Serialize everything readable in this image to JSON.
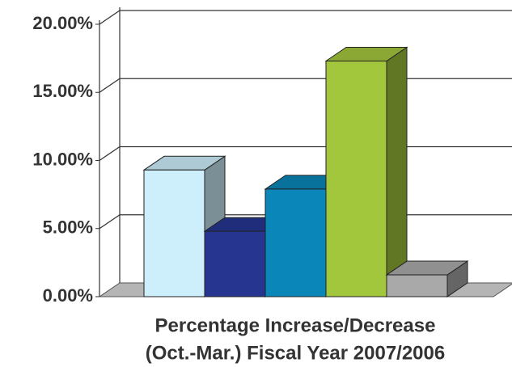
{
  "chart_data": {
    "type": "bar3d",
    "xlabel": [
      "Percentage Increase/Decrease",
      "(Oct.-Mar.) Fiscal Year 2007/2006"
    ],
    "categories": [
      null,
      null,
      null,
      null,
      null
    ],
    "values": [
      9.3,
      4.8,
      7.9,
      17.3,
      1.6
    ],
    "colors": [
      "#cdeefb",
      "#26358f",
      "#0b86b8",
      "#a2c63c",
      "#a9a9a9"
    ],
    "ylim": [
      0,
      20
    ],
    "yticks": [
      {
        "value": 0,
        "label": "0.00%"
      },
      {
        "value": 5,
        "label": "5.00%"
      },
      {
        "value": 10,
        "label": "10.00%"
      },
      {
        "value": 15,
        "label": "15.00%"
      },
      {
        "value": 20,
        "label": "20.00%"
      }
    ],
    "grid": true
  }
}
